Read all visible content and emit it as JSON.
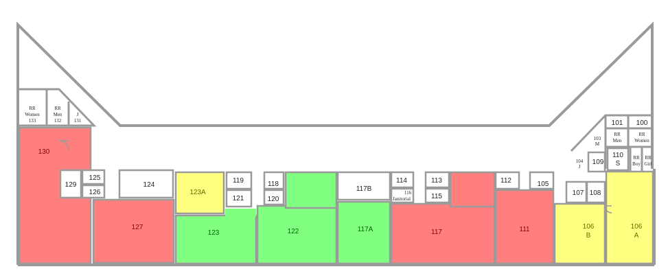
{
  "colors": {
    "occupied": "#ff7f7f",
    "available": "#80ff80",
    "partial": "#ffff80",
    "unassigned": "#ffffff",
    "wall": "#9a9a9a"
  },
  "rooms": [
    {
      "id": "130",
      "label": "130",
      "status": "occupied"
    },
    {
      "id": "127",
      "label": "127",
      "status": "occupied"
    },
    {
      "id": "117",
      "label": "117",
      "status": "occupied"
    },
    {
      "id": "111",
      "label": "111",
      "status": "occupied"
    },
    {
      "id": "123",
      "label": "123",
      "status": "available"
    },
    {
      "id": "122",
      "label": "122",
      "status": "available"
    },
    {
      "id": "117A",
      "label": "117A",
      "status": "available"
    },
    {
      "id": "123A",
      "label": "123A",
      "status": "partial"
    },
    {
      "id": "106B",
      "label": "106",
      "label2": "B",
      "status": "partial"
    },
    {
      "id": "106A",
      "label": "106",
      "label2": "A",
      "status": "partial"
    },
    {
      "id": "129",
      "label": "129",
      "status": "unassigned"
    },
    {
      "id": "125",
      "label": "125",
      "status": "unassigned"
    },
    {
      "id": "126",
      "label": "126",
      "status": "unassigned"
    },
    {
      "id": "124",
      "label": "124",
      "status": "unassigned"
    },
    {
      "id": "119",
      "label": "119",
      "status": "unassigned"
    },
    {
      "id": "121",
      "label": "121",
      "status": "unassigned"
    },
    {
      "id": "118",
      "label": "118",
      "status": "unassigned"
    },
    {
      "id": "120",
      "label": "120",
      "status": "unassigned"
    },
    {
      "id": "117B",
      "label": "117B",
      "status": "unassigned"
    },
    {
      "id": "114",
      "label": "114",
      "status": "unassigned"
    },
    {
      "id": "116",
      "label": "116",
      "label2": "Janitorial",
      "status": "unassigned"
    },
    {
      "id": "113",
      "label": "113",
      "status": "unassigned"
    },
    {
      "id": "115",
      "label": "115",
      "status": "unassigned"
    },
    {
      "id": "112",
      "label": "112",
      "status": "unassigned"
    },
    {
      "id": "105",
      "label": "105",
      "status": "unassigned"
    },
    {
      "id": "107",
      "label": "107",
      "status": "unassigned"
    },
    {
      "id": "108",
      "label": "108",
      "status": "unassigned"
    },
    {
      "id": "109",
      "label": "109",
      "status": "unassigned"
    },
    {
      "id": "110",
      "label": "110",
      "label2": "S",
      "status": "unassigned"
    },
    {
      "id": "104",
      "label": "104",
      "label2": "J",
      "status": "unassigned"
    },
    {
      "id": "103",
      "label": "103",
      "label2": "M",
      "status": "unassigned"
    },
    {
      "id": "101",
      "label": "101",
      "status": "unassigned"
    },
    {
      "id": "100",
      "label": "100",
      "status": "unassigned"
    },
    {
      "id": "133",
      "label": "RR",
      "label2": "Women",
      "label3": "133",
      "status": "unassigned"
    },
    {
      "id": "132",
      "label": "RR",
      "label2": "Men",
      "label3": "132",
      "status": "unassigned"
    },
    {
      "id": "131",
      "label": "J",
      "label2": "131",
      "status": "unassigned"
    },
    {
      "id": "rr-men-e",
      "label": "RR",
      "label2": "Men",
      "status": "unassigned"
    },
    {
      "id": "rr-women-e",
      "label": "RR",
      "label2": "Women",
      "status": "unassigned"
    },
    {
      "id": "rr-boy",
      "label": "RR",
      "label2": "Boy",
      "status": "unassigned"
    },
    {
      "id": "rr-girl",
      "label": "RR",
      "label2": "Girl",
      "status": "unassigned"
    }
  ]
}
